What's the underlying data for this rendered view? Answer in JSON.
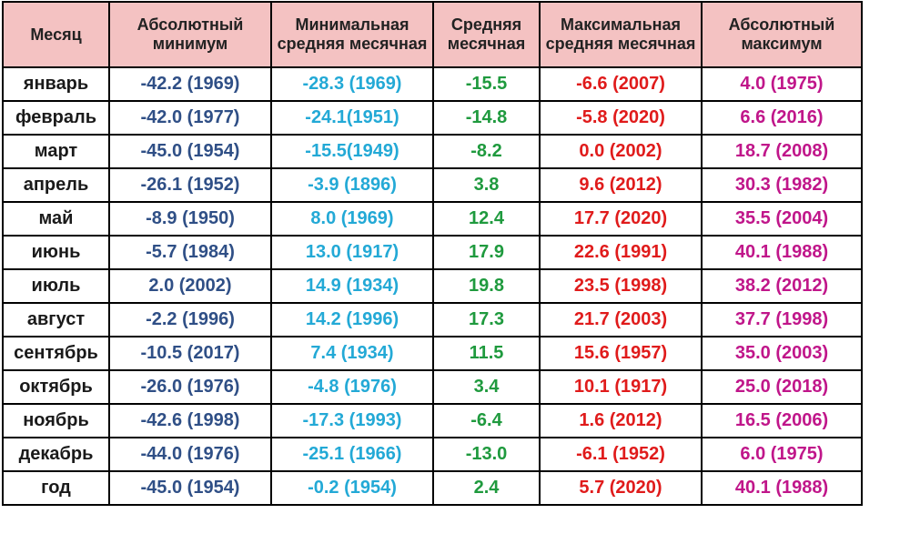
{
  "headers": {
    "month": "Месяц",
    "abs_min": "Абсолютный минимум",
    "min_avg": "Минимальная средняя месячная",
    "avg": "Средняя месячная",
    "max_avg": "Максимальная средняя месячная",
    "abs_max": "Абсолютный максимум"
  },
  "colors": {
    "header_bg": "#f4c2c2",
    "abs_min": "#2f4f86",
    "min_avg": "#23a9d6",
    "avg": "#1f9a3e",
    "max_avg": "#e01b1b",
    "abs_max": "#c0168a"
  },
  "rows": [
    {
      "month": "январь",
      "abs_min": "-42.2 (1969)",
      "min_avg": "-28.3 (1969)",
      "avg": "-15.5",
      "max_avg": "-6.6 (2007)",
      "abs_max": "4.0 (1975)"
    },
    {
      "month": "февраль",
      "abs_min": "-42.0 (1977)",
      "min_avg": "-24.1(1951)",
      "avg": "-14.8",
      "max_avg": "-5.8 (2020)",
      "abs_max": "6.6 (2016)"
    },
    {
      "month": "март",
      "abs_min": "-45.0 (1954)",
      "min_avg": "-15.5(1949)",
      "avg": "-8.2",
      "max_avg": "0.0 (2002)",
      "abs_max": "18.7 (2008)"
    },
    {
      "month": "апрель",
      "abs_min": "-26.1 (1952)",
      "min_avg": "-3.9 (1896)",
      "avg": "3.8",
      "max_avg": "9.6 (2012)",
      "abs_max": "30.3 (1982)"
    },
    {
      "month": "май",
      "abs_min": "-8.9 (1950)",
      "min_avg": "8.0 (1969)",
      "avg": "12.4",
      "max_avg": "17.7 (2020)",
      "abs_max": "35.5 (2004)"
    },
    {
      "month": "июнь",
      "abs_min": "-5.7 (1984)",
      "min_avg": "13.0 (1917)",
      "avg": "17.9",
      "max_avg": "22.6 (1991)",
      "abs_max": "40.1 (1988)"
    },
    {
      "month": "июль",
      "abs_min": "2.0 (2002)",
      "min_avg": "14.9 (1934)",
      "avg": "19.8",
      "max_avg": "23.5 (1998)",
      "abs_max": "38.2 (2012)"
    },
    {
      "month": "август",
      "abs_min": "-2.2 (1996)",
      "min_avg": "14.2 (1996)",
      "avg": "17.3",
      "max_avg": "21.7 (2003)",
      "abs_max": "37.7 (1998)"
    },
    {
      "month": "сентябрь",
      "abs_min": "-10.5 (2017)",
      "min_avg": "7.4 (1934)",
      "avg": "11.5",
      "max_avg": "15.6 (1957)",
      "abs_max": "35.0 (2003)"
    },
    {
      "month": "октябрь",
      "abs_min": "-26.0 (1976)",
      "min_avg": "-4.8 (1976)",
      "avg": "3.4",
      "max_avg": "10.1 (1917)",
      "abs_max": "25.0 (2018)"
    },
    {
      "month": "ноябрь",
      "abs_min": "-42.6 (1998)",
      "min_avg": "-17.3 (1993)",
      "avg": "-6.4",
      "max_avg": "1.6 (2012)",
      "abs_max": "16.5 (2006)"
    },
    {
      "month": "декабрь",
      "abs_min": "-44.0 (1976)",
      "min_avg": "-25.1 (1966)",
      "avg": "-13.0",
      "max_avg": "-6.1 (1952)",
      "abs_max": "6.0 (1975)"
    },
    {
      "month": "год",
      "abs_min": "-45.0 (1954)",
      "min_avg": "-0.2 (1954)",
      "avg": "2.4",
      "max_avg": "5.7 (2020)",
      "abs_max": "40.1 (1988)"
    }
  ]
}
